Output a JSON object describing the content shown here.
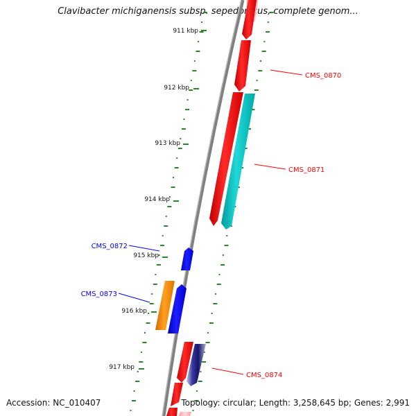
{
  "title": "Clavibacter michiganensis subsp. sepedonicus, complete genom...",
  "footer": {
    "accession": "Accession: NC_010407",
    "summary": "Topology: circular; Length: 3,258,645 bp; Genes: 2,991"
  },
  "scale": {
    "unit": "kbp",
    "ticks": [
      "911 kbp",
      "912 kbp",
      "913 kbp",
      "914 kbp",
      "915 kbp",
      "916 kbp",
      "917 kbp"
    ]
  },
  "genes": [
    {
      "name": "CMS_0870",
      "strand": "+",
      "color": "#ff0000",
      "label_color": "#ff0000"
    },
    {
      "name": "CMS_0871",
      "strand": "+",
      "color": "#ff0000",
      "label_color": "#ff0000"
    },
    {
      "name": "CMS_0872",
      "strand": "-",
      "color": "#0000ff",
      "label_color": "#0000ff"
    },
    {
      "name": "CMS_0873",
      "strand": "-",
      "color": "#0000ff",
      "label_color": "#0000ff"
    },
    {
      "name": "CMS_0874",
      "strand": "+",
      "color": "#ff0000",
      "label_color": "#ff0000"
    }
  ],
  "colors": {
    "forward_cds": "#ff0000",
    "reverse_cds": "#0000ff",
    "feature_cyan": "#00c8c8",
    "feature_orange": "#ff8c00",
    "feature_navy": "#1a1a80",
    "tick": "#228b22",
    "backbone": "#808080"
  }
}
